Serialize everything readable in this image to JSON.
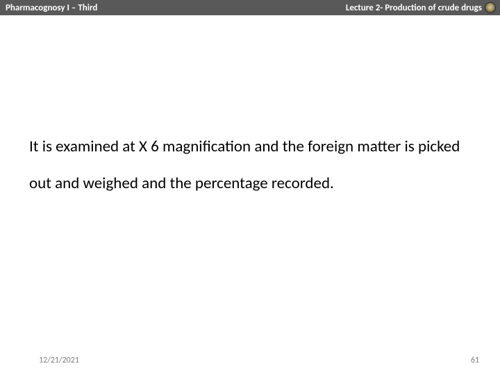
{
  "header": {
    "left": "Pharmacognosy I – Third",
    "right": "Lecture 2- Production of crude drugs"
  },
  "body": {
    "text": "It is examined at X 6 magnification and the foreign matter is picked out and weighed and the percentage recorded."
  },
  "footer": {
    "date": "12/21/2021",
    "page": "61"
  },
  "colors": {
    "header_bg": "#595959",
    "header_text": "#ffffff",
    "body_text": "#000000",
    "footer_text": "#7f7f7f",
    "background": "#ffffff"
  }
}
